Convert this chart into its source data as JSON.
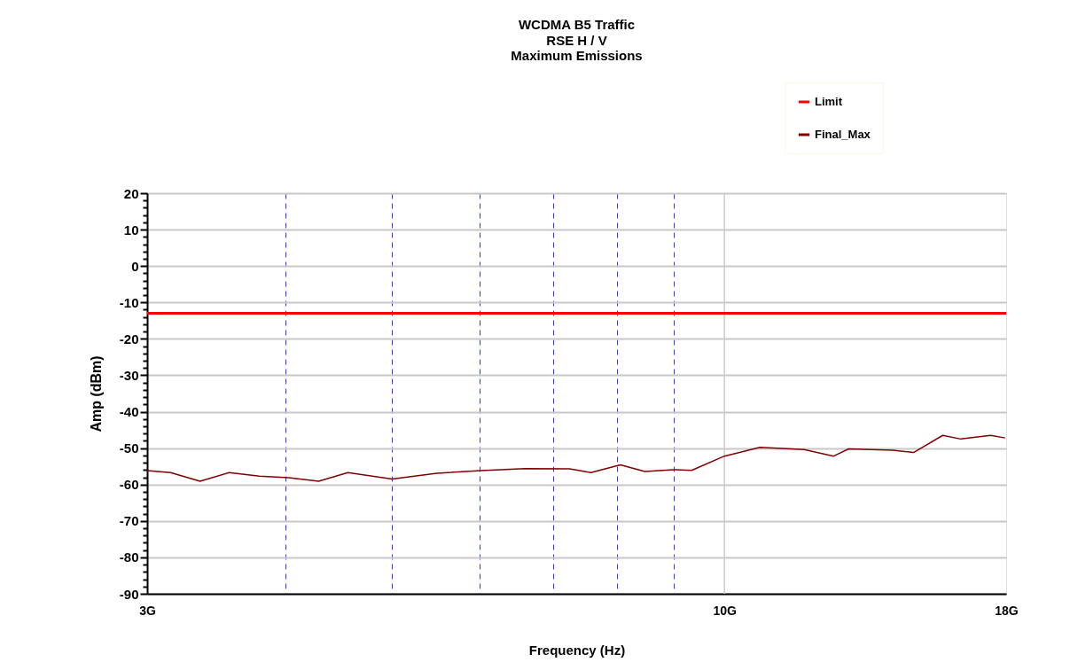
{
  "chart_data": {
    "type": "line",
    "title": "WCDMA B5 Traffic",
    "subtitle": "RSE H / V\nMaximum Emissions",
    "xlabel": "Frequency (Hz)",
    "ylabel": "Amp (dBm)",
    "log": "x",
    "grid": true,
    "legend": "top right",
    "marker": "none",
    "line_style": "solid",
    "xlim": [
      3,
      18
    ],
    "xticks": [
      {
        "value": 3,
        "label": "3G"
      },
      {
        "value": 4,
        "label": null
      },
      {
        "value": 5,
        "label": null
      },
      {
        "value": 6,
        "label": null
      },
      {
        "value": 7,
        "label": null
      },
      {
        "value": 8,
        "label": null
      },
      {
        "value": 9,
        "label": null
      },
      {
        "value": 10,
        "label": "10G"
      },
      {
        "value": 18,
        "label": "18G"
      }
    ],
    "ylim": [
      -90,
      20
    ],
    "yticks": [
      -90,
      {
        "value": -88,
        "label": null
      },
      {
        "value": -86,
        "label": null
      },
      {
        "value": -84,
        "label": null
      },
      {
        "value": -82,
        "label": null
      },
      -80,
      {
        "value": -78,
        "label": null
      },
      {
        "value": -76,
        "label": null
      },
      {
        "value": -74,
        "label": null
      },
      {
        "value": -72,
        "label": null
      },
      -70,
      {
        "value": -68,
        "label": null
      },
      {
        "value": -66,
        "label": null
      },
      {
        "value": -64,
        "label": null
      },
      {
        "value": -62,
        "label": null
      },
      -60,
      {
        "value": -58,
        "label": null
      },
      {
        "value": -56,
        "label": null
      },
      {
        "value": -54,
        "label": null
      },
      {
        "value": -52,
        "label": null
      },
      -50,
      {
        "value": -48,
        "label": null
      },
      {
        "value": -46,
        "label": null
      },
      {
        "value": -44,
        "label": null
      },
      {
        "value": -42,
        "label": null
      },
      -40,
      {
        "value": -38,
        "label": null
      },
      {
        "value": -36,
        "label": null
      },
      {
        "value": -34,
        "label": null
      },
      {
        "value": -32,
        "label": null
      },
      -30,
      {
        "value": -28,
        "label": null
      },
      {
        "value": -26,
        "label": null
      },
      {
        "value": -24,
        "label": null
      },
      {
        "value": -22,
        "label": null
      },
      -20,
      {
        "value": -18,
        "label": null
      },
      {
        "value": -16,
        "label": null
      },
      {
        "value": -14,
        "label": null
      },
      {
        "value": -12,
        "label": null
      },
      -10,
      {
        "value": -8,
        "label": null
      },
      {
        "value": -6,
        "label": null
      },
      {
        "value": -4,
        "label": null
      },
      {
        "value": -2,
        "label": null
      },
      0,
      {
        "value": 2,
        "label": null
      },
      {
        "value": 4,
        "label": null
      },
      {
        "value": 6,
        "label": null
      },
      {
        "value": 8,
        "label": null
      },
      10,
      {
        "value": 12,
        "label": null
      },
      {
        "value": 14,
        "label": null
      },
      {
        "value": 16,
        "label": null
      },
      {
        "value": 18,
        "label": null
      },
      20
    ],
    "ref_lines": [
      {
        "axis": "x",
        "value": 10,
        "color": "#cccccc",
        "line_style": "solid"
      }
    ],
    "series": [
      {
        "name": "Limit",
        "color": "#ff0000",
        "x": [
          3,
          18
        ],
        "values": [
          -13,
          -13
        ]
      },
      {
        "name": "Final_Max",
        "color": "#800000",
        "x": [
          3,
          3.15,
          3.35,
          3.56,
          3.79,
          4.03,
          4.29,
          4.56,
          5.0,
          5.49,
          6.02,
          6.6,
          7.24,
          7.57,
          8.05,
          8.47,
          9.0,
          9.34,
          10.0,
          10.77,
          11.81,
          12.56,
          12.96,
          14.21,
          14.84,
          15.77,
          16.37,
          17.43,
          17.96
        ],
        "values": [
          -56.2,
          -56.7,
          -59.1,
          -56.7,
          -57.7,
          -58.1,
          -59.1,
          -56.7,
          -58.5,
          -56.9,
          -56.2,
          -55.6,
          -55.7,
          -56.7,
          -54.6,
          -56.4,
          -55.9,
          -56.1,
          -52.2,
          -49.8,
          -50.4,
          -52.2,
          -50.2,
          -50.6,
          -51.2,
          -46.5,
          -47.5,
          -46.5,
          -47.2
        ]
      }
    ]
  }
}
